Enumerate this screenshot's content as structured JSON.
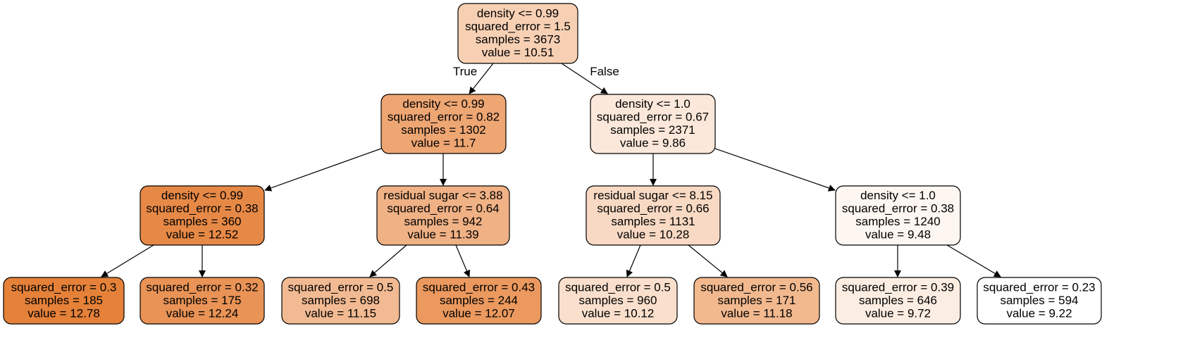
{
  "tree": {
    "colors": {
      "border": "#000000",
      "edge": "#000000",
      "background": "#ffffff",
      "value_min_color": "#ffffff",
      "value_max_color": "#e58139"
    },
    "nodes": [
      {
        "id": "n0",
        "lines": [
          "density <= 0.99",
          "squared_error = 1.5",
          "samples = 3673",
          "value = 10.51"
        ],
        "value": 10.51,
        "fill": "#f7d0b4"
      },
      {
        "id": "n1",
        "lines": [
          "density <= 0.99",
          "squared_error = 0.82",
          "samples = 1302",
          "value = 11.7"
        ],
        "value": 11.7,
        "fill": "#eea673"
      },
      {
        "id": "n2",
        "lines": [
          "density <= 0.99",
          "squared_error = 0.38",
          "samples = 360",
          "value = 12.52"
        ],
        "value": 12.52,
        "fill": "#e78946"
      },
      {
        "id": "n3",
        "lines": [
          "squared_error = 0.3",
          "samples = 185",
          "value = 12.78"
        ],
        "value": 12.78,
        "fill": "#e58139"
      },
      {
        "id": "n4",
        "lines": [
          "squared_error = 0.32",
          "samples = 175",
          "value = 12.24"
        ],
        "value": 12.24,
        "fill": "#e99356"
      },
      {
        "id": "n5",
        "lines": [
          "residual sugar <= 3.88",
          "squared_error = 0.64",
          "samples = 942",
          "value = 11.39"
        ],
        "value": 11.39,
        "fill": "#f0b185"
      },
      {
        "id": "n6",
        "lines": [
          "squared_error = 0.5",
          "samples = 698",
          "value = 11.15"
        ],
        "value": 11.15,
        "fill": "#f2ba92"
      },
      {
        "id": "n7",
        "lines": [
          "squared_error = 0.43",
          "samples = 244",
          "value = 12.07"
        ],
        "value": 12.07,
        "fill": "#eb995e"
      },
      {
        "id": "n8",
        "lines": [
          "density <= 1.0",
          "squared_error = 0.67",
          "samples = 2371",
          "value = 9.86"
        ],
        "value": 9.86,
        "fill": "#fbe8da"
      },
      {
        "id": "n9",
        "lines": [
          "residual sugar <= 8.15",
          "squared_error = 0.66",
          "samples = 1131",
          "value = 10.28"
        ],
        "value": 10.28,
        "fill": "#f8d9c3"
      },
      {
        "id": "n10",
        "lines": [
          "squared_error = 0.5",
          "samples = 960",
          "value = 10.12"
        ],
        "value": 10.12,
        "fill": "#f9dfcc"
      },
      {
        "id": "n11",
        "lines": [
          "squared_error = 0.56",
          "samples = 171",
          "value = 11.18"
        ],
        "value": 11.18,
        "fill": "#f2b98f"
      },
      {
        "id": "n12",
        "lines": [
          "density <= 1.0",
          "squared_error = 0.38",
          "samples = 1240",
          "value = 9.48"
        ],
        "value": 9.48,
        "fill": "#fef6f1"
      },
      {
        "id": "n13",
        "lines": [
          "squared_error = 0.39",
          "samples = 646",
          "value = 9.72"
        ],
        "value": 9.72,
        "fill": "#fcede2"
      },
      {
        "id": "n14",
        "lines": [
          "squared_error = 0.23",
          "samples = 594",
          "value = 9.22"
        ],
        "value": 9.22,
        "fill": "#ffffff"
      }
    ],
    "edges": [
      {
        "from": "n0",
        "to": "n1",
        "label": "True"
      },
      {
        "from": "n0",
        "to": "n8",
        "label": "False"
      },
      {
        "from": "n1",
        "to": "n2",
        "label": ""
      },
      {
        "from": "n1",
        "to": "n5",
        "label": ""
      },
      {
        "from": "n2",
        "to": "n3",
        "label": ""
      },
      {
        "from": "n2",
        "to": "n4",
        "label": ""
      },
      {
        "from": "n5",
        "to": "n6",
        "label": ""
      },
      {
        "from": "n5",
        "to": "n7",
        "label": ""
      },
      {
        "from": "n8",
        "to": "n9",
        "label": ""
      },
      {
        "from": "n8",
        "to": "n12",
        "label": ""
      },
      {
        "from": "n9",
        "to": "n10",
        "label": ""
      },
      {
        "from": "n9",
        "to": "n11",
        "label": ""
      },
      {
        "from": "n12",
        "to": "n13",
        "label": ""
      },
      {
        "from": "n12",
        "to": "n14",
        "label": ""
      }
    ]
  }
}
